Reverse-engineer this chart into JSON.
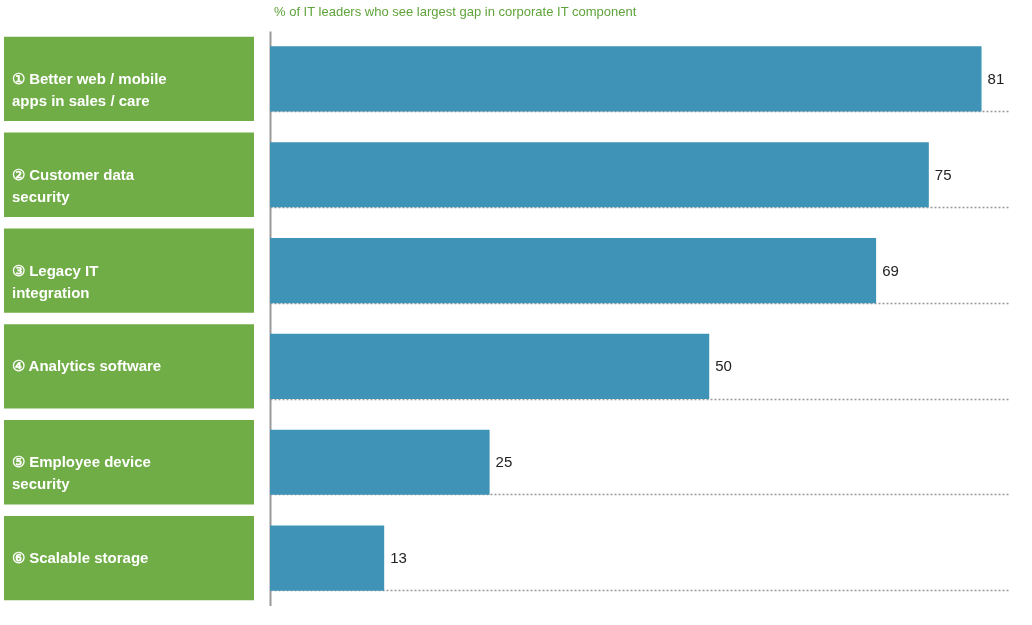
{
  "chart_data": {
    "type": "bar",
    "orientation": "horizontal",
    "title": "% of IT leaders who see largest gap in corporate IT component",
    "categories": [
      "① Better web / mobile apps in sales / care",
      "② Customer data security",
      "③ Legacy IT integration",
      "④ Analytics software",
      "⑤ Employee device security",
      "⑥ Scalable storage"
    ],
    "values": [
      81,
      75,
      69,
      50,
      25,
      13
    ],
    "color": "#3f93b6",
    "data_labels": true,
    "grid": "y"
  }
}
